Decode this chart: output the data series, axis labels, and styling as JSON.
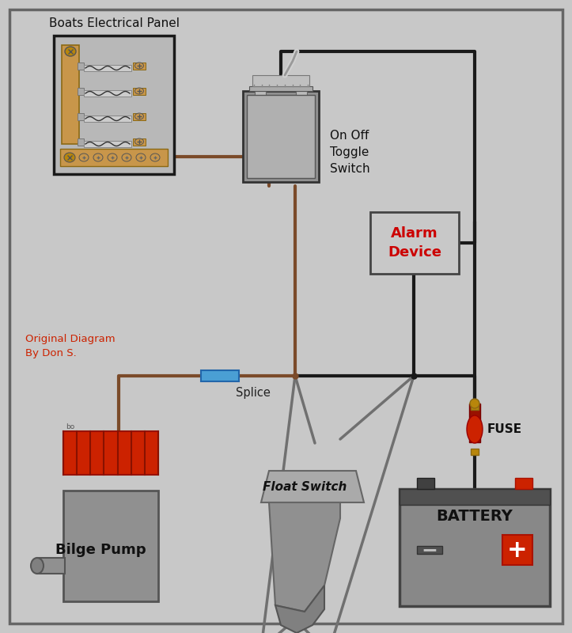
{
  "bg_color": "#c8c8c8",
  "wire_brown": "#7B4B2A",
  "wire_black": "#1a1a1a",
  "wire_gray": "#707070",
  "splice_color": "#4a9fd4",
  "panel_bg": "#b8b8b8",
  "panel_border": "#1a1a1a",
  "panel_wood": "#c8964a",
  "switch_body": "#a0a0a0",
  "alarm_text": "#cc0000",
  "battery_body": "#808080",
  "battery_top": "#505050",
  "fuse_red": "#cc2200",
  "pump_body": "#909090",
  "pump_red": "#cc2200",
  "title_text": "Boats Electrical Panel",
  "switch_label": "On Off\nToggle\nSwitch",
  "alarm_label": "Alarm\nDevice",
  "splice_label": "Splice",
  "battery_label": "BATTERY",
  "fuse_label": "FUSE",
  "pump_label": "Bilge Pump",
  "float_label": "Float Switch",
  "credit": "Original Diagram\nBy Don S."
}
